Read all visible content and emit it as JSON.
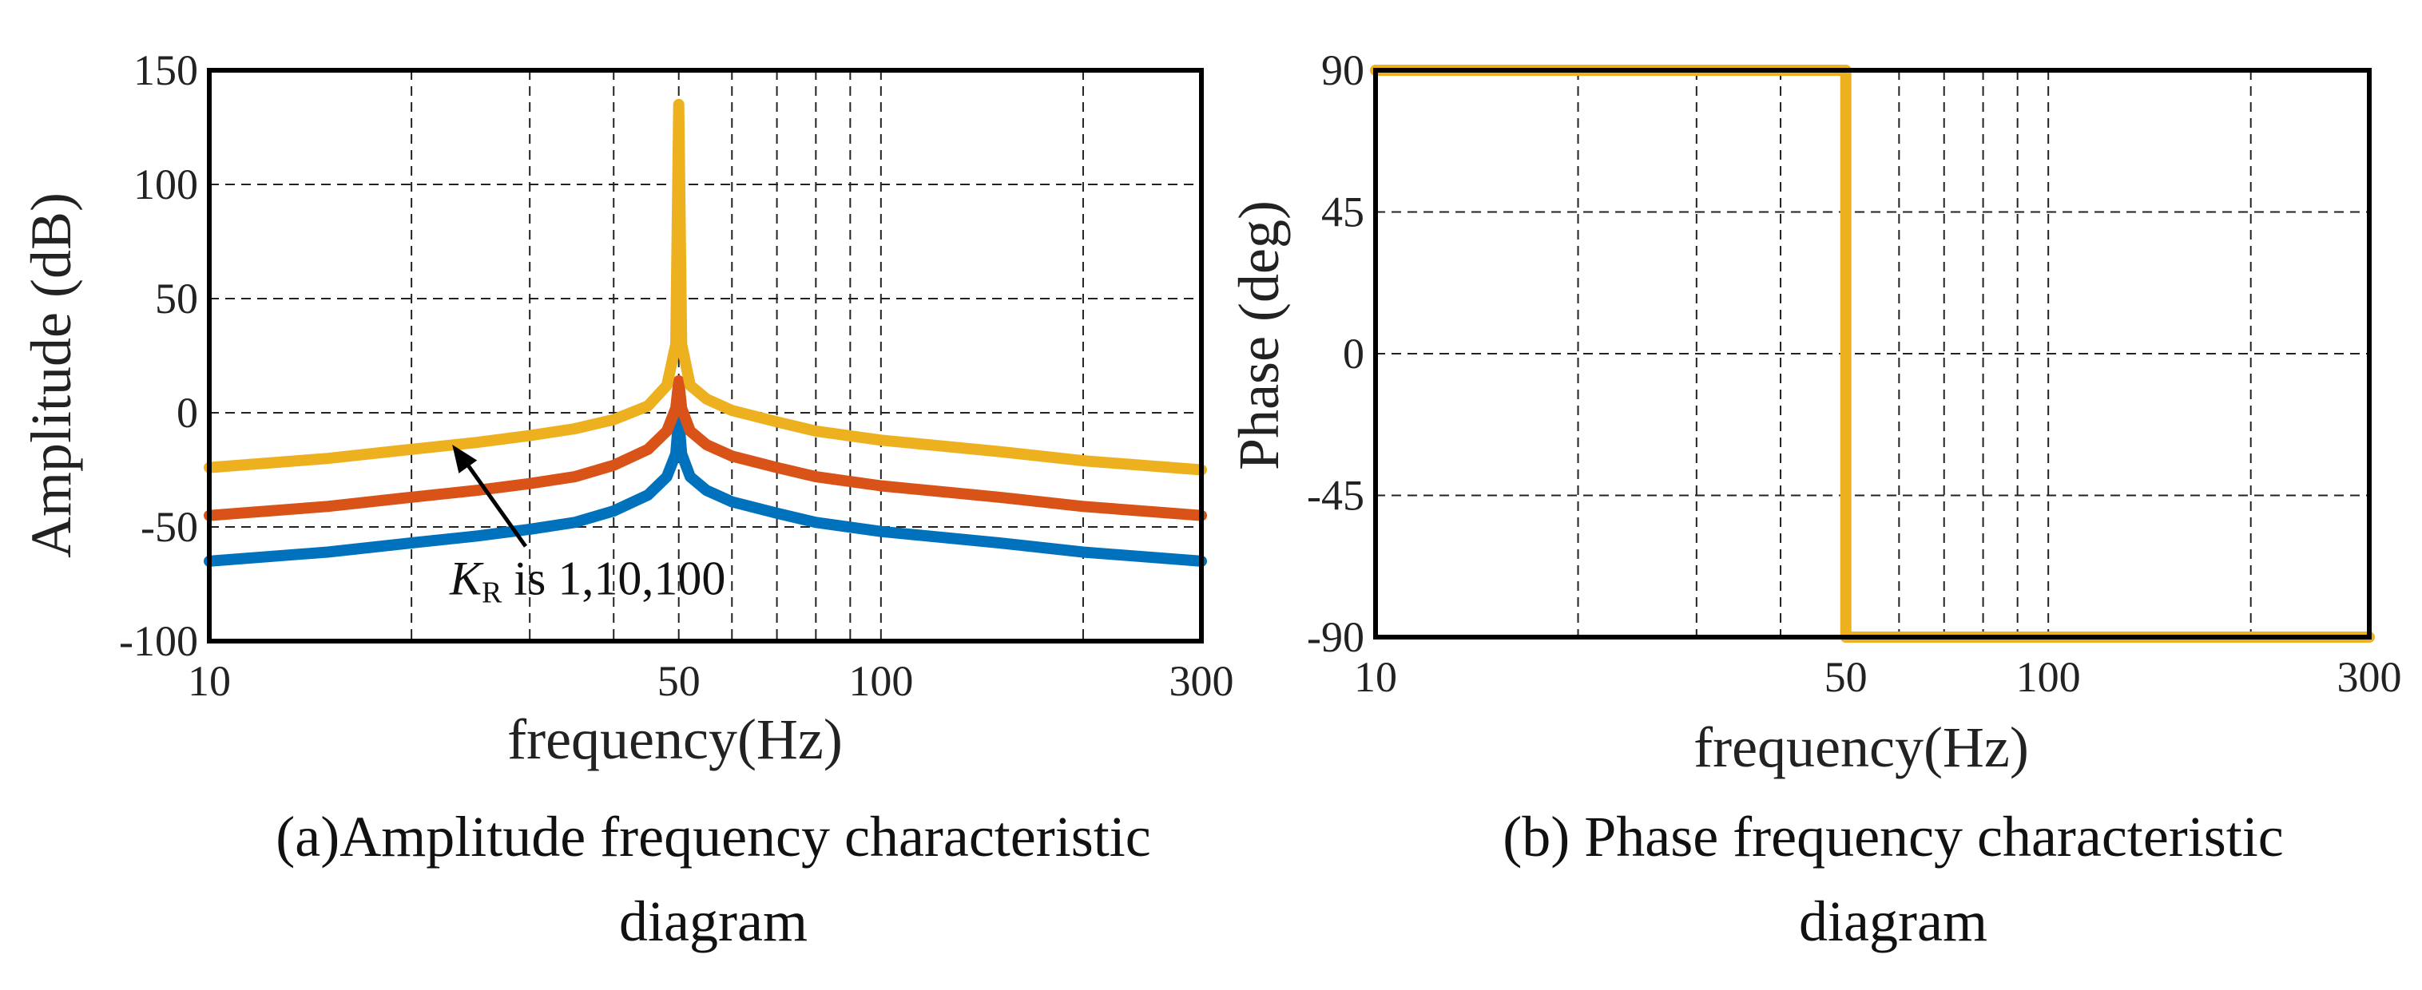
{
  "chart_data": [
    {
      "type": "line",
      "panel": "a",
      "xlabel": "frequency(Hz)",
      "ylabel": "Amplitude (dB)",
      "xscale": "log",
      "xlim": [
        10,
        300
      ],
      "ylim": [
        -100,
        150
      ],
      "xticks": [
        10,
        50,
        100,
        300
      ],
      "yticks": [
        150,
        100,
        50,
        0,
        -50,
        -100
      ],
      "grid": true,
      "caption_line1": "(a)Amplitude frequency characteristic",
      "caption_line2": "diagram",
      "annotation": {
        "text_main": "K",
        "text_sub": "R",
        "text_rest": " is 1,10,100",
        "x": 28,
        "y": -55
      },
      "annotation_arrow_to": {
        "x": 23,
        "y": -14
      },
      "colors": [
        "#0072BD",
        "#D95319",
        "#EDB120"
      ],
      "series": [
        {
          "kr": 1,
          "color": "#0072BD",
          "points": [
            [
              10,
              -65
            ],
            [
              15,
              -61
            ],
            [
              20,
              -57
            ],
            [
              25,
              -54
            ],
            [
              30,
              -51
            ],
            [
              35,
              -48
            ],
            [
              40,
              -43
            ],
            [
              45,
              -36
            ],
            [
              48,
              -28
            ],
            [
              49.5,
              -18
            ],
            [
              50,
              -2
            ],
            [
              50.5,
              -18
            ],
            [
              52,
              -28
            ],
            [
              55,
              -34
            ],
            [
              60,
              -39
            ],
            [
              70,
              -44
            ],
            [
              80,
              -48
            ],
            [
              100,
              -52
            ],
            [
              150,
              -57
            ],
            [
              200,
              -61
            ],
            [
              300,
              -65
            ]
          ]
        },
        {
          "kr": 10,
          "color": "#D95319",
          "points": [
            [
              10,
              -45
            ],
            [
              15,
              -41
            ],
            [
              20,
              -37
            ],
            [
              25,
              -34
            ],
            [
              30,
              -31
            ],
            [
              35,
              -28
            ],
            [
              40,
              -23
            ],
            [
              45,
              -16
            ],
            [
              48,
              -8
            ],
            [
              49.5,
              2
            ],
            [
              50,
              14
            ],
            [
              50.5,
              2
            ],
            [
              52,
              -8
            ],
            [
              55,
              -14
            ],
            [
              60,
              -19
            ],
            [
              70,
              -24
            ],
            [
              80,
              -28
            ],
            [
              100,
              -32
            ],
            [
              150,
              -37
            ],
            [
              200,
              -41
            ],
            [
              300,
              -45
            ]
          ]
        },
        {
          "kr": 100,
          "color": "#EDB120",
          "points": [
            [
              10,
              -24
            ],
            [
              15,
              -20
            ],
            [
              20,
              -16
            ],
            [
              25,
              -13
            ],
            [
              30,
              -10
            ],
            [
              35,
              -7
            ],
            [
              40,
              -3
            ],
            [
              45,
              3
            ],
            [
              48,
              12
            ],
            [
              49.5,
              30
            ],
            [
              50,
              135
            ],
            [
              50.5,
              30
            ],
            [
              52,
              12
            ],
            [
              55,
              6
            ],
            [
              60,
              1
            ],
            [
              70,
              -4
            ],
            [
              80,
              -8
            ],
            [
              100,
              -12
            ],
            [
              150,
              -17
            ],
            [
              200,
              -21
            ],
            [
              300,
              -25
            ]
          ]
        }
      ]
    },
    {
      "type": "line",
      "panel": "b",
      "xlabel": "frequency(Hz)",
      "ylabel": "Phase (deg)",
      "xscale": "log",
      "xlim": [
        10,
        300
      ],
      "ylim": [
        -90,
        90
      ],
      "xticks": [
        10,
        50,
        100,
        300
      ],
      "yticks": [
        90,
        45,
        0,
        -45,
        -90
      ],
      "grid": true,
      "caption_line1": "(b) Phase frequency characteristic",
      "caption_line2": "diagram",
      "series": [
        {
          "color": "#EDB120",
          "points": [
            [
              10,
              90
            ],
            [
              50,
              90
            ],
            [
              50,
              -90
            ],
            [
              300,
              -90
            ]
          ]
        }
      ]
    }
  ]
}
